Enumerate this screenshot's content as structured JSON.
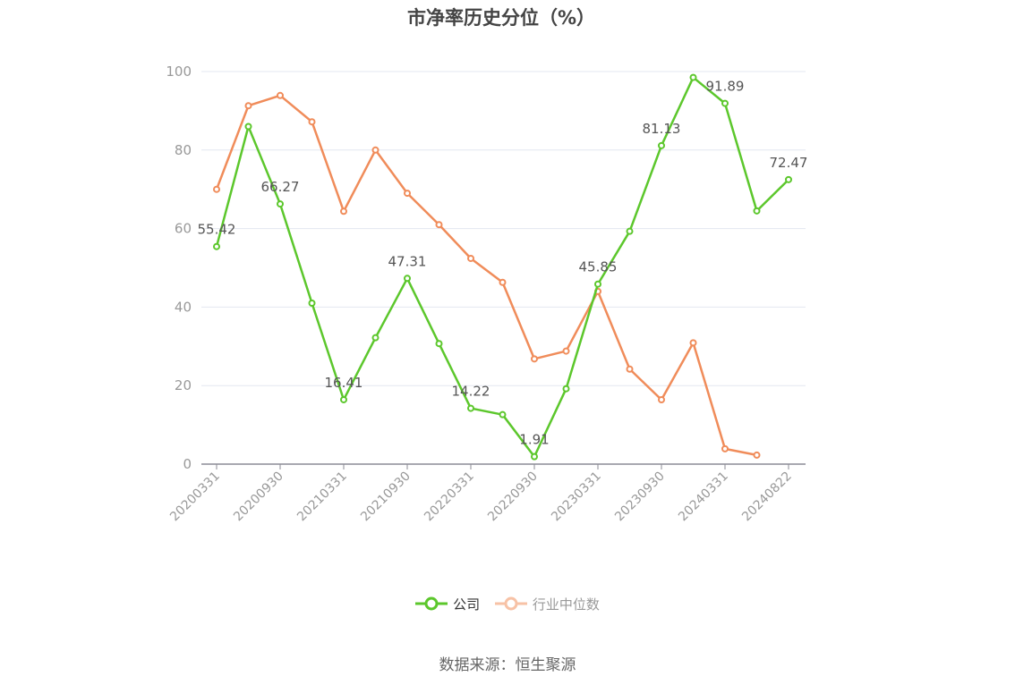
{
  "title": "市净率历史分位（%）",
  "source": "数据来源：恒生聚源",
  "colors": {
    "company": "#5cc72c",
    "industry": "#f08c5a",
    "grid": "#e3e7f0",
    "axis": "#8b8b96",
    "tick_text": "#999999",
    "label_text": "#555555"
  },
  "legend": [
    {
      "key": "company",
      "label": "公司"
    },
    {
      "key": "industry",
      "label": "行业中位数"
    }
  ],
  "chart_data": {
    "type": "line",
    "title": "市净率历史分位（%）",
    "x_tick_labels": [
      "20200331",
      "20200930",
      "20210331",
      "20210930",
      "20220331",
      "20220930",
      "20230331",
      "20230930",
      "20240331",
      "20240822"
    ],
    "ylim": [
      0,
      100
    ],
    "yticks": [
      0,
      20,
      40,
      60,
      80,
      100
    ],
    "grid": true,
    "legend_position": "bottom",
    "series": [
      {
        "name": "公司",
        "color_key": "company",
        "values": [
          55.42,
          86.0,
          66.27,
          41.0,
          16.41,
          32.2,
          47.31,
          30.7,
          14.22,
          12.6,
          1.91,
          19.2,
          45.85,
          59.3,
          81.13,
          98.5,
          91.89,
          64.5,
          72.47
        ],
        "labels": [
          "55.42",
          null,
          "66.27",
          null,
          "16.41",
          null,
          "47.31",
          null,
          "14.22",
          null,
          "1.91",
          null,
          "45.85",
          null,
          "81.13",
          null,
          "91.89",
          null,
          "72.47"
        ]
      },
      {
        "name": "行业中位数",
        "color_key": "industry",
        "values": [
          70.0,
          91.3,
          93.9,
          87.2,
          64.4,
          80.0,
          69.0,
          61.0,
          52.4,
          46.3,
          26.8,
          28.8,
          44.0,
          24.2,
          16.4,
          30.9,
          3.9,
          2.3,
          null
        ]
      }
    ]
  }
}
